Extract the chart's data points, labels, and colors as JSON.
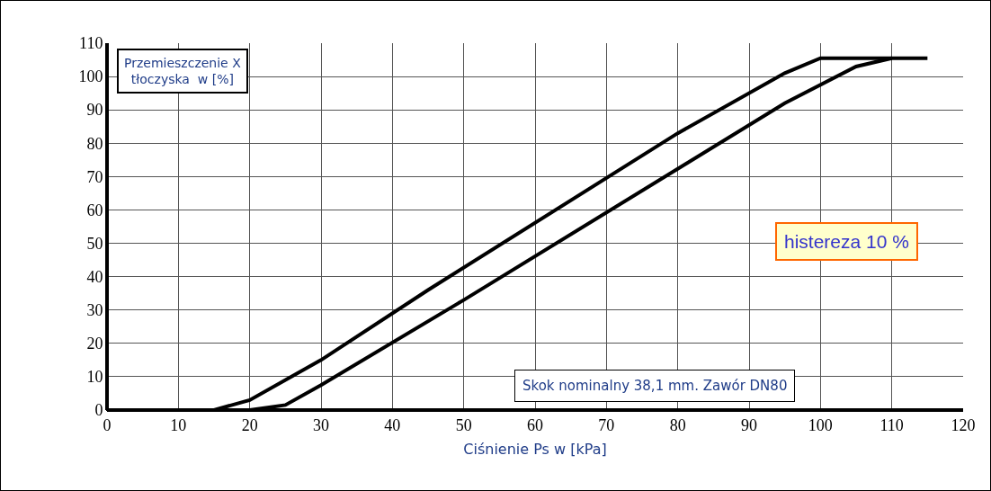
{
  "chart_data": {
    "type": "line",
    "xlabel": "Ciśnienie Ps w [kPa]",
    "ylabel": "Przemieszczenie X\ntłoczyska  w [%]",
    "annotations": [
      "histereza 10 %",
      "Skok nominalny 38,1 mm. Zawór DN80"
    ],
    "series": [
      {
        "color": "#000000",
        "x": [
          0,
          15,
          20,
          30,
          45,
          80,
          95,
          100,
          115
        ],
        "values": [
          0,
          0,
          3,
          15,
          36,
          83,
          101,
          105.5,
          105.5
        ]
      },
      {
        "color": "#000000",
        "x": [
          0,
          20,
          25,
          30,
          50,
          95,
          105,
          110
        ],
        "values": [
          0,
          0,
          1.5,
          7.5,
          33,
          92,
          103,
          105.5
        ]
      }
    ],
    "xlim": [
      0,
      120
    ],
    "xticks": [
      0,
      10,
      20,
      30,
      40,
      50,
      60,
      70,
      80,
      90,
      100,
      110,
      120
    ],
    "ylim": [
      0,
      110
    ],
    "yticks": [
      0,
      10,
      20,
      30,
      40,
      50,
      60,
      70,
      80,
      90,
      100,
      110
    ],
    "grid": true,
    "marker": "none",
    "line_style": "solid"
  }
}
